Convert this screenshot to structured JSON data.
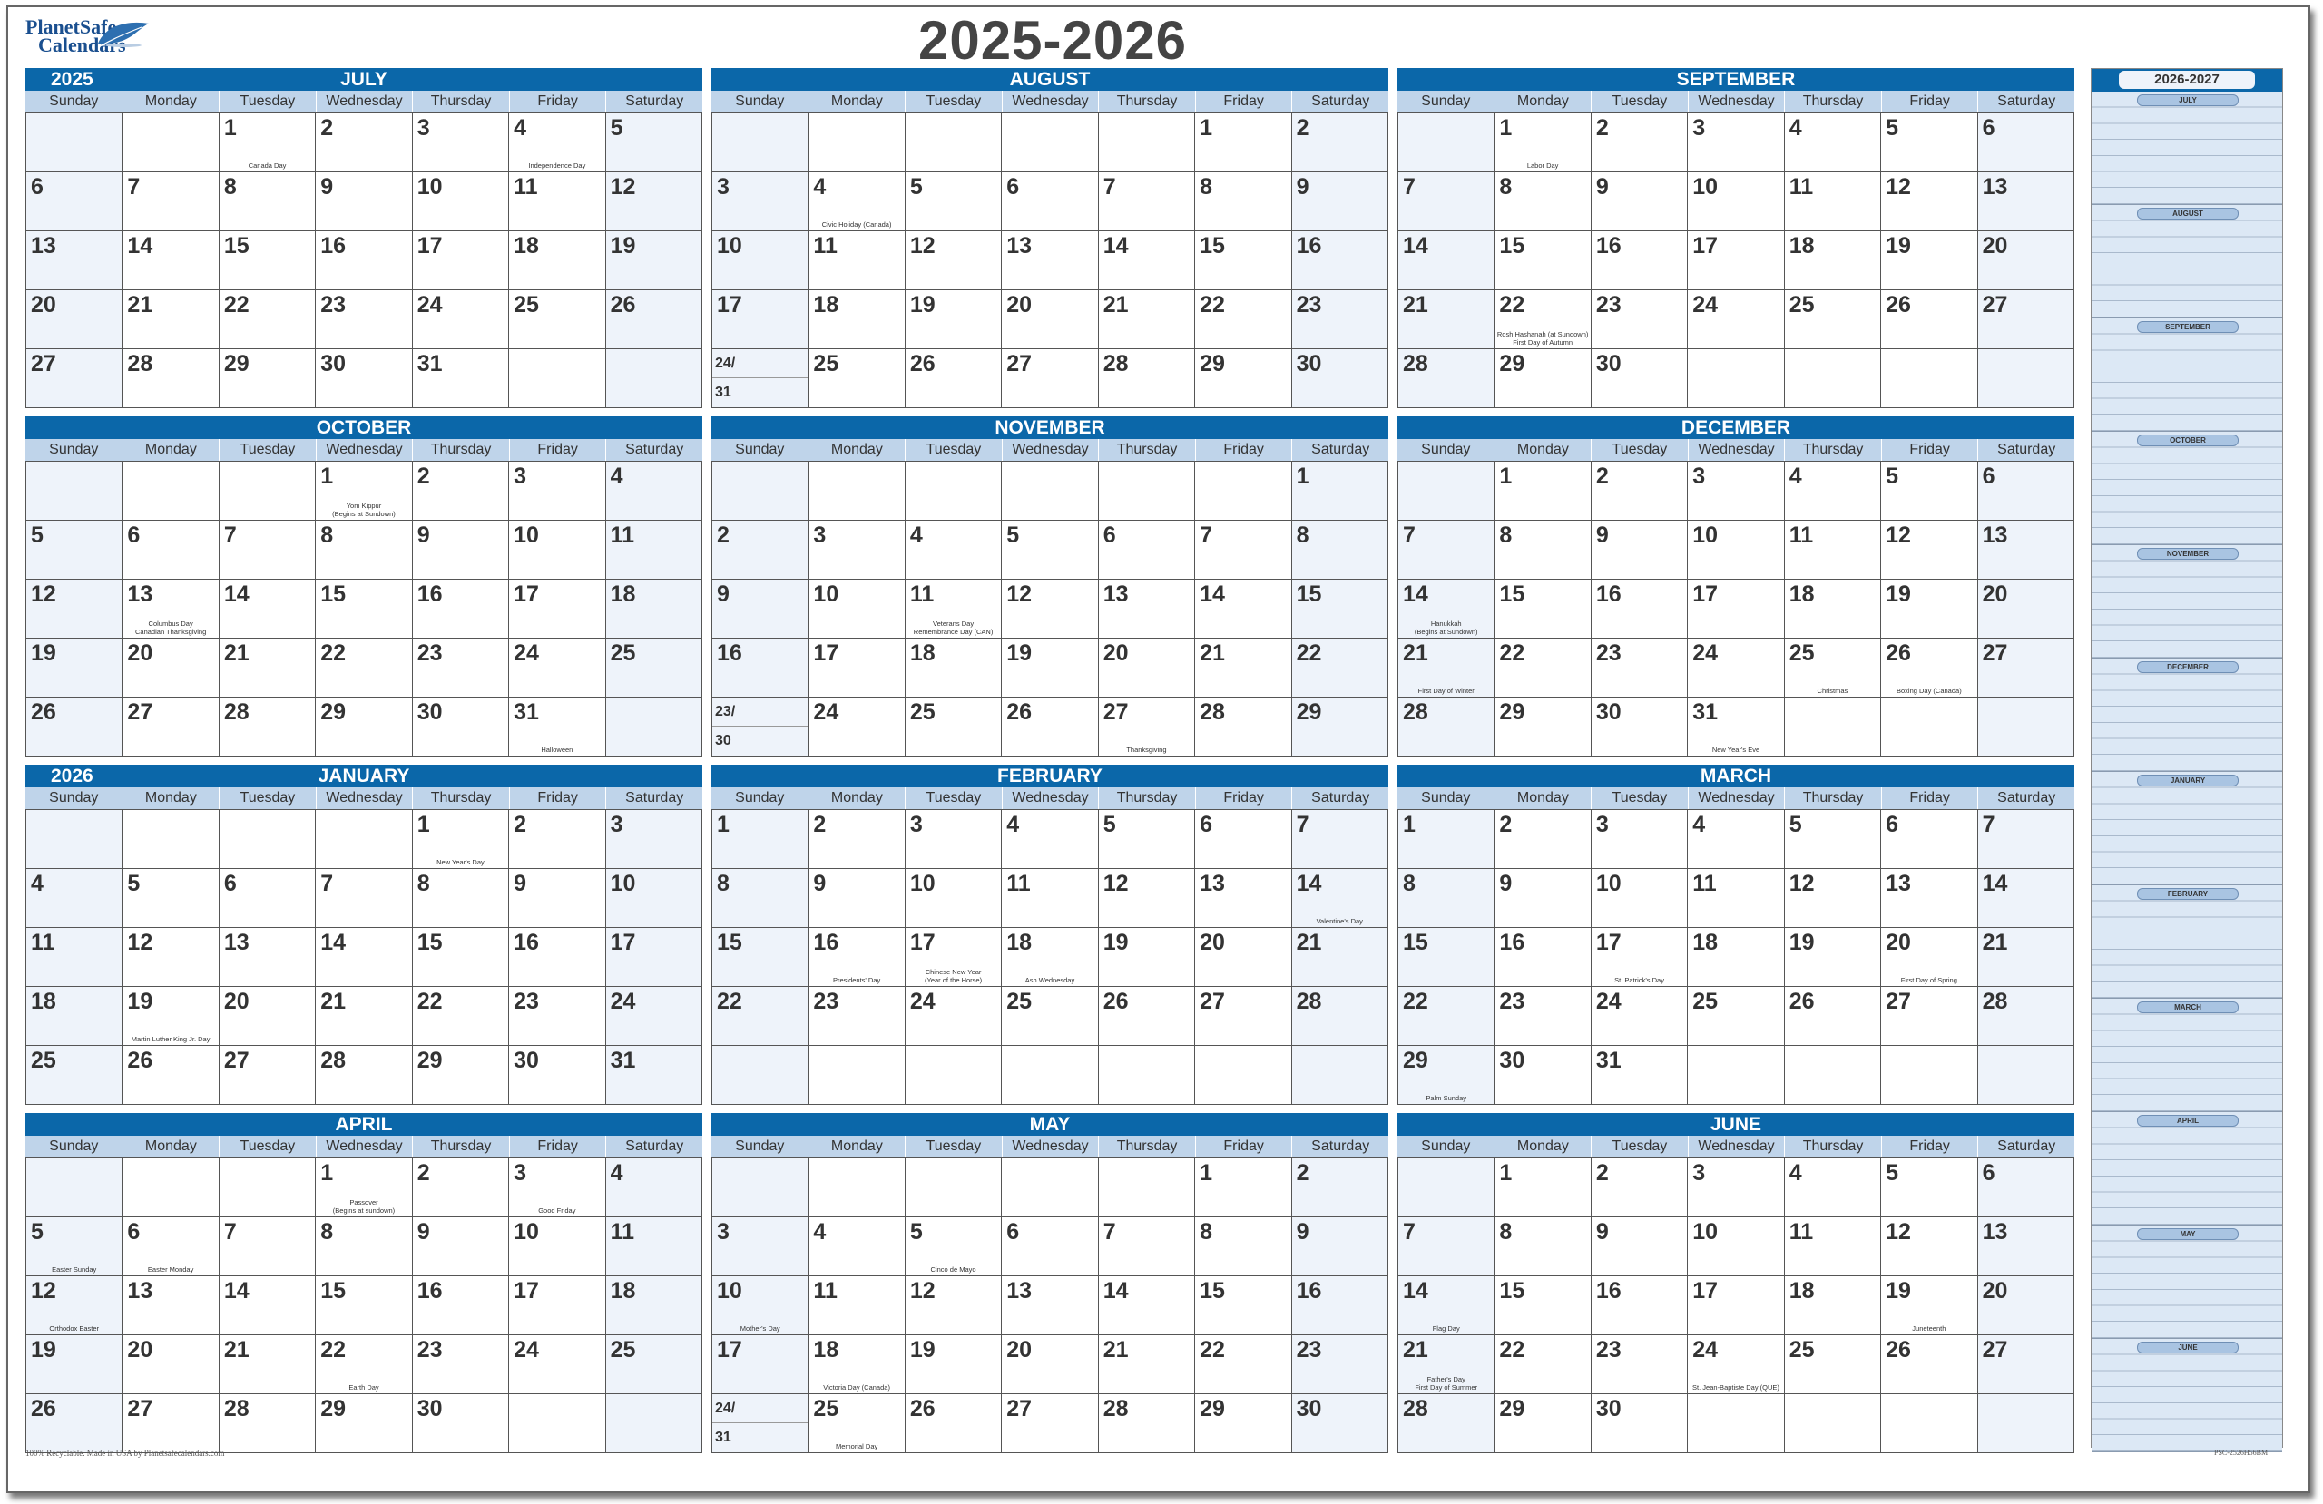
{
  "logo": {
    "line1": "PlanetSafe",
    "line2": "Calendars"
  },
  "title": "2025-2026",
  "day_names": [
    "Sunday",
    "Monday",
    "Tuesday",
    "Wednesday",
    "Thursday",
    "Friday",
    "Saturday"
  ],
  "colors": {
    "header_blue": "#0b67a9",
    "dayname_bg": "#bfd4ea",
    "weekend_bg": "#eef3fa",
    "sidebar_bg": "#dce8f5"
  },
  "months": [
    {
      "name": "JULY",
      "year": "2025",
      "weeks": [
        [
          "",
          "",
          1,
          2,
          3,
          4,
          5
        ],
        [
          6,
          7,
          8,
          9,
          10,
          11,
          12
        ],
        [
          13,
          14,
          15,
          16,
          17,
          18,
          19
        ],
        [
          20,
          21,
          22,
          23,
          24,
          25,
          26
        ],
        [
          27,
          28,
          29,
          30,
          31,
          "",
          ""
        ]
      ],
      "holidays": {
        "1": "Canada Day",
        "4": "Independence Day"
      }
    },
    {
      "name": "AUGUST",
      "year": "",
      "weeks": [
        [
          "",
          "",
          "",
          "",
          "",
          1,
          2
        ],
        [
          3,
          4,
          5,
          6,
          7,
          8,
          9
        ],
        [
          10,
          11,
          12,
          13,
          14,
          15,
          16
        ],
        [
          17,
          18,
          19,
          20,
          21,
          22,
          23
        ],
        [
          "24/31",
          25,
          26,
          27,
          28,
          29,
          30
        ]
      ],
      "holidays": {
        "4": "Civic Holiday (Canada)"
      }
    },
    {
      "name": "SEPTEMBER",
      "year": "",
      "weeks": [
        [
          "",
          1,
          2,
          3,
          4,
          5,
          6
        ],
        [
          7,
          8,
          9,
          10,
          11,
          12,
          13
        ],
        [
          14,
          15,
          16,
          17,
          18,
          19,
          20
        ],
        [
          21,
          22,
          23,
          24,
          25,
          26,
          27
        ],
        [
          28,
          29,
          30,
          "",
          "",
          "",
          ""
        ]
      ],
      "holidays": {
        "1": "Labor Day",
        "22": "Rosh Hashanah (at Sundown)\nFirst Day of Autumn"
      }
    },
    {
      "name": "OCTOBER",
      "year": "",
      "weeks": [
        [
          "",
          "",
          "",
          1,
          2,
          3,
          4
        ],
        [
          5,
          6,
          7,
          8,
          9,
          10,
          11
        ],
        [
          12,
          13,
          14,
          15,
          16,
          17,
          18
        ],
        [
          19,
          20,
          21,
          22,
          23,
          24,
          25
        ],
        [
          26,
          27,
          28,
          29,
          30,
          31,
          ""
        ]
      ],
      "holidays": {
        "1": "Yom Kippur\n(Begins at Sundown)",
        "13": "Columbus Day\nCanadian Thanksgiving",
        "31": "Halloween"
      }
    },
    {
      "name": "NOVEMBER",
      "year": "",
      "weeks": [
        [
          "",
          "",
          "",
          "",
          "",
          "",
          1
        ],
        [
          2,
          3,
          4,
          5,
          6,
          7,
          8
        ],
        [
          9,
          10,
          11,
          12,
          13,
          14,
          15
        ],
        [
          16,
          17,
          18,
          19,
          20,
          21,
          22
        ],
        [
          "23/30",
          24,
          25,
          26,
          27,
          28,
          29
        ]
      ],
      "holidays": {
        "11": "Veterans Day\nRemembrance Day (CAN)",
        "27": "Thanksgiving"
      }
    },
    {
      "name": "DECEMBER",
      "year": "",
      "weeks": [
        [
          "",
          1,
          2,
          3,
          4,
          5,
          6
        ],
        [
          7,
          8,
          9,
          10,
          11,
          12,
          13
        ],
        [
          14,
          15,
          16,
          17,
          18,
          19,
          20
        ],
        [
          21,
          22,
          23,
          24,
          25,
          26,
          27
        ],
        [
          28,
          29,
          30,
          31,
          "",
          "",
          ""
        ]
      ],
      "holidays": {
        "14": "Hanukkah\n(Begins at Sundown)",
        "21": "First Day of Winter",
        "25": "Christmas",
        "26": "Boxing Day (Canada)",
        "31": "New Year's Eve"
      }
    },
    {
      "name": "JANUARY",
      "year": "2026",
      "weeks": [
        [
          "",
          "",
          "",
          "",
          1,
          2,
          3
        ],
        [
          4,
          5,
          6,
          7,
          8,
          9,
          10
        ],
        [
          11,
          12,
          13,
          14,
          15,
          16,
          17
        ],
        [
          18,
          19,
          20,
          21,
          22,
          23,
          24
        ],
        [
          25,
          26,
          27,
          28,
          29,
          30,
          31
        ]
      ],
      "holidays": {
        "1": "New Year's Day",
        "19": "Martin Luther King Jr. Day"
      }
    },
    {
      "name": "FEBRUARY",
      "year": "",
      "weeks": [
        [
          1,
          2,
          3,
          4,
          5,
          6,
          7
        ],
        [
          8,
          9,
          10,
          11,
          12,
          13,
          14
        ],
        [
          15,
          16,
          17,
          18,
          19,
          20,
          21
        ],
        [
          22,
          23,
          24,
          25,
          26,
          27,
          28
        ],
        [
          "",
          "",
          "",
          "",
          "",
          "",
          ""
        ]
      ],
      "holidays": {
        "14": "Valentine's Day",
        "16": "Presidents' Day",
        "17": "Chinese New Year\n(Year of the Horse)",
        "18": "Ash Wednesday"
      }
    },
    {
      "name": "MARCH",
      "year": "",
      "weeks": [
        [
          1,
          2,
          3,
          4,
          5,
          6,
          7
        ],
        [
          8,
          9,
          10,
          11,
          12,
          13,
          14
        ],
        [
          15,
          16,
          17,
          18,
          19,
          20,
          21
        ],
        [
          22,
          23,
          24,
          25,
          26,
          27,
          28
        ],
        [
          29,
          30,
          31,
          "",
          "",
          "",
          ""
        ]
      ],
      "holidays": {
        "17": "St. Patrick's Day",
        "20": "First Day of Spring",
        "29": "Palm Sunday"
      }
    },
    {
      "name": "APRIL",
      "year": "",
      "weeks": [
        [
          "",
          "",
          "",
          1,
          2,
          3,
          4
        ],
        [
          5,
          6,
          7,
          8,
          9,
          10,
          11
        ],
        [
          12,
          13,
          14,
          15,
          16,
          17,
          18
        ],
        [
          19,
          20,
          21,
          22,
          23,
          24,
          25
        ],
        [
          26,
          27,
          28,
          29,
          30,
          "",
          ""
        ]
      ],
      "holidays": {
        "1": "Passover\n(Begins at sundown)",
        "3": "Good Friday",
        "5": "Easter Sunday",
        "6": "Easter Monday",
        "12": "Orthodox Easter",
        "22": "Earth Day"
      }
    },
    {
      "name": "MAY",
      "year": "",
      "weeks": [
        [
          "",
          "",
          "",
          "",
          "",
          1,
          2
        ],
        [
          3,
          4,
          5,
          6,
          7,
          8,
          9
        ],
        [
          10,
          11,
          12,
          13,
          14,
          15,
          16
        ],
        [
          17,
          18,
          19,
          20,
          21,
          22,
          23
        ],
        [
          "24/31",
          25,
          26,
          27,
          28,
          29,
          30
        ]
      ],
      "holidays": {
        "5": "Cinco de Mayo",
        "10": "Mother's Day",
        "18": "Victoria Day (Canada)",
        "25": "Memorial Day"
      }
    },
    {
      "name": "JUNE",
      "year": "",
      "weeks": [
        [
          "",
          1,
          2,
          3,
          4,
          5,
          6
        ],
        [
          7,
          8,
          9,
          10,
          11,
          12,
          13
        ],
        [
          14,
          15,
          16,
          17,
          18,
          19,
          20
        ],
        [
          21,
          22,
          23,
          24,
          25,
          26,
          27
        ],
        [
          28,
          29,
          30,
          "",
          "",
          "",
          ""
        ]
      ],
      "holidays": {
        "14": "Flag Day",
        "19": "Juneteenth",
        "21": "Father's Day\nFirst Day of Summer",
        "24": "St. Jean-Baptiste Day (QUE)"
      }
    }
  ],
  "sidebar": {
    "title": "2026-2027",
    "months": [
      "JULY",
      "AUGUST",
      "SEPTEMBER",
      "OCTOBER",
      "NOVEMBER",
      "DECEMBER",
      "JANUARY",
      "FEBRUARY",
      "MARCH",
      "APRIL",
      "MAY",
      "JUNE"
    ]
  },
  "footer": {
    "left": "100% Recyclable. Made in USA by Planetsafecalendars.com",
    "right": "PSC-2526H56BM"
  }
}
